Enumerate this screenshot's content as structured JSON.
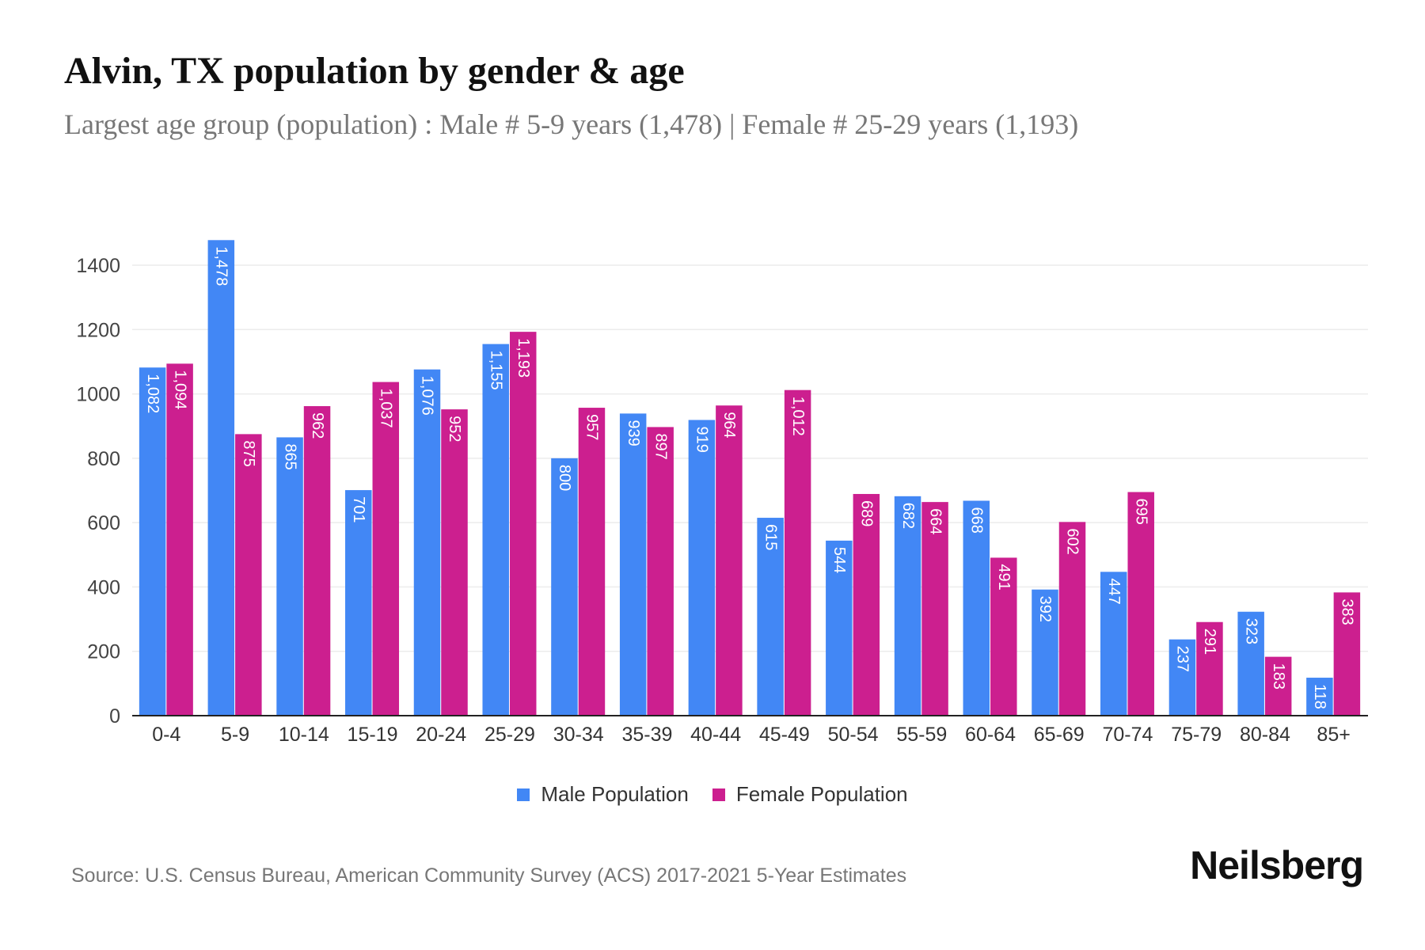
{
  "title": "Alvin, TX population by gender & age",
  "subtitle": "Largest age group (population) : Male # 5-9 years (1,478) | Female # 25-29 years (1,193)",
  "source": "Source: U.S. Census Bureau, American Community Survey (ACS) 2017-2021 5-Year Estimates",
  "logo": "Neilsberg",
  "chart_data": {
    "type": "bar",
    "title": "Alvin, TX population by gender & age",
    "xlabel": "",
    "ylabel": "",
    "ylim": [
      0,
      1400
    ],
    "yticks": [
      0,
      200,
      400,
      600,
      800,
      1000,
      1200,
      1400
    ],
    "grid": true,
    "legend_position": "bottom",
    "categories": [
      "0-4",
      "5-9",
      "10-14",
      "15-19",
      "20-24",
      "25-29",
      "30-34",
      "35-39",
      "40-44",
      "45-49",
      "50-54",
      "55-59",
      "60-64",
      "65-69",
      "70-74",
      "75-79",
      "80-84",
      "85+"
    ],
    "series": [
      {
        "name": "Male Population",
        "color": "#4287f5",
        "values": [
          1082,
          1478,
          865,
          701,
          1076,
          1155,
          800,
          939,
          919,
          615,
          544,
          682,
          668,
          392,
          447,
          237,
          323,
          118
        ]
      },
      {
        "name": "Female Population",
        "color": "#cc1f8f",
        "values": [
          1094,
          875,
          962,
          1037,
          952,
          1193,
          957,
          897,
          964,
          1012,
          689,
          664,
          491,
          602,
          695,
          291,
          183,
          383
        ]
      }
    ]
  }
}
